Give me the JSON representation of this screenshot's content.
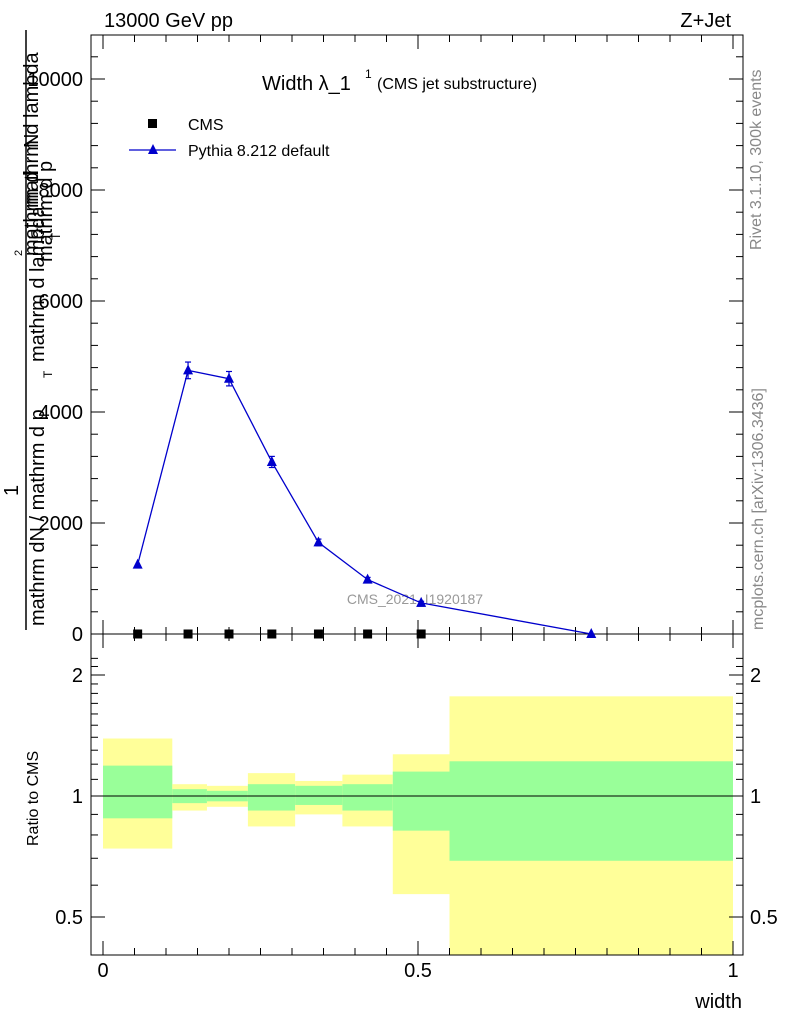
{
  "header": {
    "energy_label": "13000 GeV pp",
    "process_label": "Z+Jet"
  },
  "side_labels": {
    "rivet": "Rivet 3.1.10,  300k events",
    "mcplots": "mcplots.cern.ch [arXiv:1306.3436]"
  },
  "watermark": "CMS_2021_I1920187",
  "chart_data": [
    {
      "type": "line",
      "title_main": "Width λ_1",
      "title_sup": "1",
      "title_note": "(CMS jet substructure)",
      "ylabel_parts": [
        "1",
        "mathrm dN / mathrm d p",
        "T",
        "mathrm d lambda",
        "mathrm d",
        "2",
        "N",
        "mathrm d p",
        "T",
        "mathrm d lambda"
      ],
      "ylabel_text": "mathrm d²N / mathrm d p_T mathrm d lambda",
      "ylim": [
        0,
        10800
      ],
      "xlim": [
        0,
        1
      ],
      "y_ticks": [
        0,
        2000,
        4000,
        6000,
        8000,
        10000
      ],
      "y_tick_labels": [
        "0",
        "2000",
        "4000",
        "6000",
        "8000",
        "10000"
      ],
      "grid": false,
      "legend_position": "top-left",
      "legend": [
        {
          "name": "CMS",
          "marker": "square",
          "color": "#000000"
        },
        {
          "name": "Pythia 8.212 default",
          "marker": "triangle",
          "color": "#0000cc"
        }
      ],
      "series": [
        {
          "name": "CMS",
          "x": [
            0.055,
            0.135,
            0.2,
            0.268,
            0.342,
            0.42,
            0.505
          ],
          "y": [
            0,
            0,
            0,
            0,
            0,
            0,
            0
          ]
        },
        {
          "name": "Pythia 8.212 default",
          "x": [
            0.055,
            0.135,
            0.2,
            0.268,
            0.342,
            0.42,
            0.505,
            0.775
          ],
          "y": [
            1250,
            4750,
            4600,
            3100,
            1650,
            980,
            560,
            0
          ],
          "yerr": [
            0,
            150,
            130,
            100,
            60,
            40,
            30,
            0
          ]
        }
      ]
    },
    {
      "type": "area",
      "ylabel": "Ratio to CMS",
      "xlabel": "width",
      "xlim": [
        0,
        1
      ],
      "ylim": [
        0.35,
        2.25
      ],
      "x_ticks": [
        0,
        0.5,
        1
      ],
      "x_tick_labels": [
        "0",
        "0.5",
        "1"
      ],
      "y_ticks": [
        0.5,
        1,
        2
      ],
      "y_tick_labels": [
        "0.5",
        "1",
        "2"
      ],
      "reference_line": 1,
      "bands": [
        {
          "x0": 0.0,
          "x1": 0.11,
          "yellow": [
            0.74,
            1.39
          ],
          "green": [
            0.88,
            1.19
          ]
        },
        {
          "x0": 0.11,
          "x1": 0.165,
          "yellow": [
            0.92,
            1.07
          ],
          "green": [
            0.96,
            1.04
          ]
        },
        {
          "x0": 0.165,
          "x1": 0.23,
          "yellow": [
            0.94,
            1.06
          ],
          "green": [
            0.97,
            1.03
          ]
        },
        {
          "x0": 0.23,
          "x1": 0.305,
          "yellow": [
            0.84,
            1.14
          ],
          "green": [
            0.92,
            1.07
          ]
        },
        {
          "x0": 0.305,
          "x1": 0.38,
          "yellow": [
            0.9,
            1.09
          ],
          "green": [
            0.95,
            1.06
          ]
        },
        {
          "x0": 0.38,
          "x1": 0.46,
          "yellow": [
            0.84,
            1.13
          ],
          "green": [
            0.92,
            1.07
          ]
        },
        {
          "x0": 0.46,
          "x1": 0.55,
          "yellow": [
            0.57,
            1.27
          ],
          "green": [
            0.82,
            1.15
          ]
        },
        {
          "x0": 0.55,
          "x1": 1.0,
          "yellow": [
            0.35,
            1.77
          ],
          "green": [
            0.69,
            1.22
          ]
        }
      ],
      "band_colors": {
        "yellow": "#ffff99",
        "green": "#99ff99"
      }
    }
  ]
}
